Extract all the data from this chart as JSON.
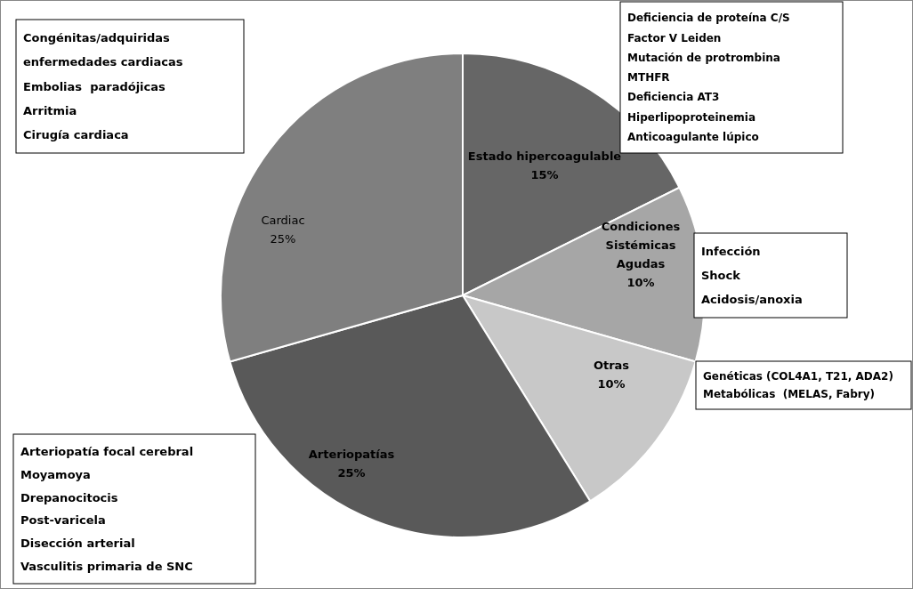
{
  "chart_data": {
    "type": "pie",
    "categories": [
      "Estado hipercoagulable",
      "Condiciones Sistémicas Agudas",
      "Otras",
      "Arteriopatías",
      "Cardiac"
    ],
    "values": [
      15,
      10,
      10,
      25,
      25
    ],
    "value_labels": [
      "15%",
      "10%",
      "10%",
      "25%",
      "25%"
    ],
    "colors": [
      "#666666",
      "#a6a6a6",
      "#c8c8c8",
      "#595959",
      "#7f7f7f"
    ],
    "annotations": [
      "Congénitas/adquiridas\nenfermedades cardiacas\nEmbolias  paradójicas\nArritmia\nCirugía cardiaca",
      "Deficiencia de proteína C/S\nFactor V Leiden\nMutación de protrombina\nMTHFR\nDeficiencia AT3\nHiperlipoproteinemia\nAnticoagulante lúpico",
      "Infección\nShock\nAcidosis/anoxia",
      "Genéticas (COL4A1, T21, ADA2)\nMetabólicas  (MELAS, Fabry)",
      "Arteriopatía focal cerebral\nMoyamoya\nDrepanocitocis\nPost-varicela\nDisección arterial\nVasculitis primaria de SNC"
    ]
  }
}
